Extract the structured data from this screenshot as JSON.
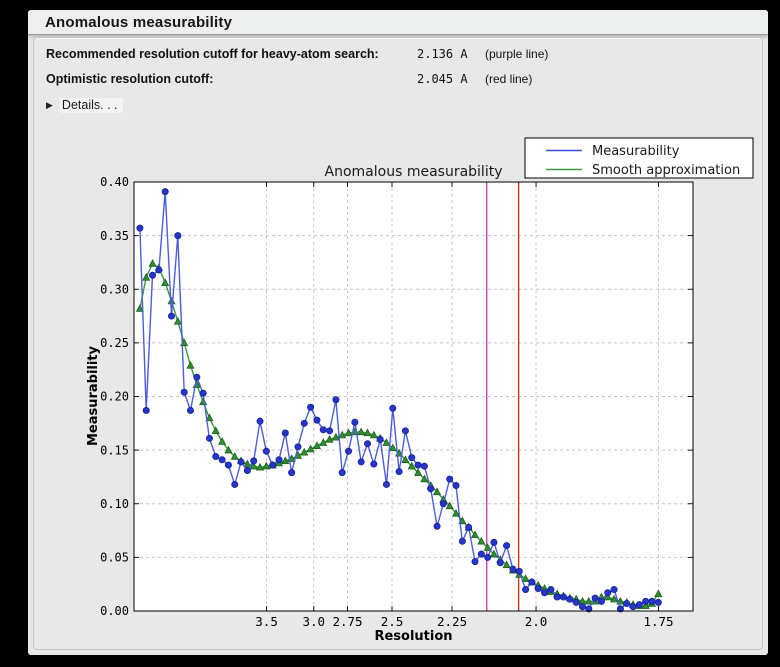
{
  "window": {
    "title": "Anomalous measurability"
  },
  "summary": {
    "rows": [
      {
        "label": "Recommended resolution cutoff for heavy-atom search:",
        "value": "2.136 A",
        "note": "(purple line)"
      },
      {
        "label": "Optimistic resolution cutoff:",
        "value": "2.045 A",
        "note": "(red line)"
      }
    ],
    "disclosure_icon": "▶",
    "details_label": "Details. . ."
  },
  "colors": {
    "window_bg": "#e6e7e8",
    "panel_bg": "#e8e8e9",
    "plot_bg": "#ffffff",
    "grid": "#c3c3c3",
    "frame": "#000000"
  },
  "chart_data": {
    "type": "line",
    "title": "Anomalous measurability",
    "xlabel": "Resolution",
    "ylabel": "Measurability",
    "grid": true,
    "x_axis": {
      "scale": "1/d^2",
      "tick_labels": [
        "3.5",
        "3.0",
        "2.75",
        "2.5",
        "2.25",
        "2.0",
        "1.75"
      ],
      "tick_d_values": [
        3.5,
        3.0,
        2.75,
        2.5,
        2.25,
        2.0,
        1.75
      ]
    },
    "y_axis": {
      "min": 0.0,
      "max": 0.4,
      "tick_step": 0.05
    },
    "legend": {
      "position": "top-right",
      "entries": [
        {
          "label": "Measurability",
          "color": "#3b4cdb"
        },
        {
          "label": "Smooth approximation",
          "color": "#3c9a3c"
        }
      ]
    },
    "cutoff_lines": [
      {
        "name": "purple line",
        "resolution_A": 2.136,
        "color": "#c843c8"
      },
      {
        "name": "red line",
        "resolution_A": 2.045,
        "color": "#cc3410"
      }
    ],
    "s_start": 0.0025,
    "s_step": 0.00395,
    "series": [
      {
        "name": "Measurability",
        "line_color": "#4d5ce0",
        "marker": "circle",
        "marker_fill": "#2636cc",
        "marker_edge": "#141f8f",
        "values": [
          0.357,
          0.187,
          0.313,
          0.318,
          0.391,
          0.275,
          0.35,
          0.204,
          0.187,
          0.218,
          0.203,
          0.161,
          0.144,
          0.141,
          0.136,
          0.118,
          0.139,
          0.131,
          0.14,
          0.177,
          0.149,
          0.136,
          0.141,
          0.166,
          0.129,
          0.153,
          0.175,
          0.19,
          0.178,
          0.169,
          0.168,
          0.197,
          0.129,
          0.149,
          0.176,
          0.139,
          0.156,
          0.137,
          0.16,
          0.118,
          0.189,
          0.13,
          0.168,
          0.143,
          0.136,
          0.135,
          0.114,
          0.079,
          0.1,
          0.123,
          0.117,
          0.065,
          0.078,
          0.046,
          0.053,
          0.05,
          0.064,
          0.045,
          0.061,
          0.039,
          0.037,
          0.02,
          0.027,
          0.021,
          0.017,
          0.02,
          0.013,
          0.013,
          0.011,
          0.008,
          0.004,
          0.002,
          0.012,
          0.009,
          0.017,
          0.02,
          0.002,
          0.007,
          0.004,
          0.006,
          0.009,
          0.009,
          0.008
        ]
      },
      {
        "name": "Smooth approximation",
        "line_color": "#3c9a3c",
        "marker": "triangle",
        "marker_fill": "#2f9030",
        "marker_edge": "#1c5e1d",
        "values": [
          0.282,
          0.311,
          0.324,
          0.32,
          0.306,
          0.289,
          0.27,
          0.25,
          0.229,
          0.211,
          0.195,
          0.18,
          0.168,
          0.158,
          0.15,
          0.144,
          0.14,
          0.137,
          0.135,
          0.134,
          0.135,
          0.136,
          0.138,
          0.14,
          0.142,
          0.145,
          0.148,
          0.151,
          0.154,
          0.157,
          0.16,
          0.162,
          0.164,
          0.166,
          0.167,
          0.167,
          0.166,
          0.164,
          0.161,
          0.157,
          0.152,
          0.147,
          0.141,
          0.135,
          0.129,
          0.123,
          0.117,
          0.111,
          0.104,
          0.098,
          0.091,
          0.084,
          0.078,
          0.071,
          0.065,
          0.059,
          0.053,
          0.048,
          0.043,
          0.038,
          0.034,
          0.03,
          0.027,
          0.024,
          0.021,
          0.018,
          0.016,
          0.014,
          0.012,
          0.011,
          0.009,
          0.009,
          0.009,
          0.013,
          0.013,
          0.011,
          0.009,
          0.008,
          0.006,
          0.005,
          0.005,
          0.007,
          0.016
        ]
      }
    ]
  }
}
